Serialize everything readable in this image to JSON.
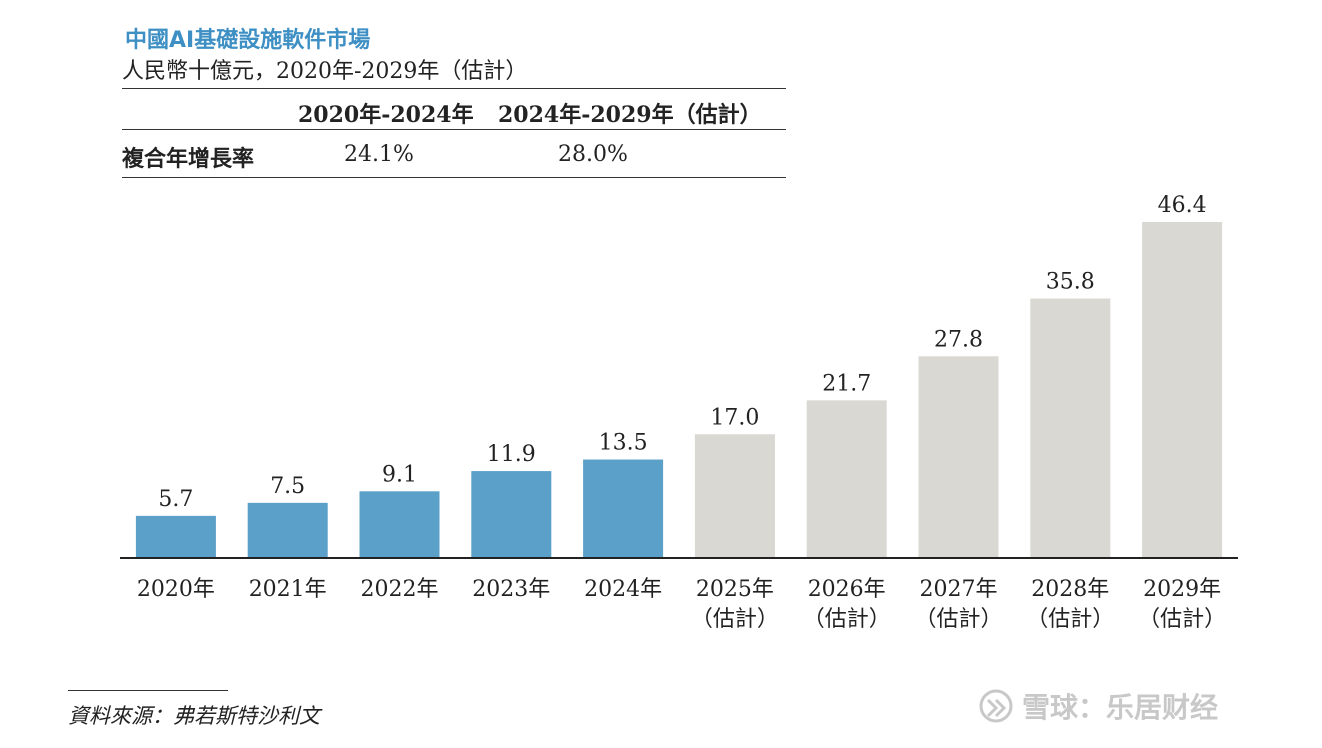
{
  "title": "中國AI基礎設施軟件市場",
  "subtitle": "人民幣十億元，2020年-2029年（估計）",
  "cagr_table": {
    "period_headers": [
      "2020年-2024年",
      "2024年-2029年（估計）"
    ],
    "row_label": "複合年增長率",
    "values": [
      "24.1%",
      "28.0%"
    ]
  },
  "chart_data": {
    "type": "bar",
    "title": "中國AI基礎設施軟件市場",
    "subtitle": "人民幣十億元，2020年-2029年（估計）",
    "categories": [
      "2020年",
      "2021年",
      "2022年",
      "2023年",
      "2024年",
      "2025年（估計）",
      "2026年（估計）",
      "2027年（估計）",
      "2028年（估計）",
      "2029年（估計）"
    ],
    "category_lines": [
      [
        "2020年"
      ],
      [
        "2021年"
      ],
      [
        "2022年"
      ],
      [
        "2023年"
      ],
      [
        "2024年"
      ],
      [
        "2025年",
        "（估計）"
      ],
      [
        "2026年",
        "（估計）"
      ],
      [
        "2027年",
        "（估計）"
      ],
      [
        "2028年",
        "（估計）"
      ],
      [
        "2029年",
        "（估計）"
      ]
    ],
    "values": [
      5.7,
      7.5,
      9.1,
      11.9,
      13.5,
      17.0,
      21.7,
      27.8,
      35.8,
      46.4
    ],
    "value_labels": [
      "5.7",
      "7.5",
      "9.1",
      "11.9",
      "13.5",
      "17.0",
      "21.7",
      "27.8",
      "35.8",
      "46.4"
    ],
    "historical_color": "#5aa0c8",
    "forecast_color": "#d9d8d3",
    "historical_count": 5,
    "ylim": [
      0,
      46.4
    ],
    "grid": false,
    "legend": "none"
  },
  "source": "資料來源：弗若斯特沙利文",
  "watermark": {
    "text": "雪球：乐居财经",
    "icon": "snowball-logo-icon"
  }
}
